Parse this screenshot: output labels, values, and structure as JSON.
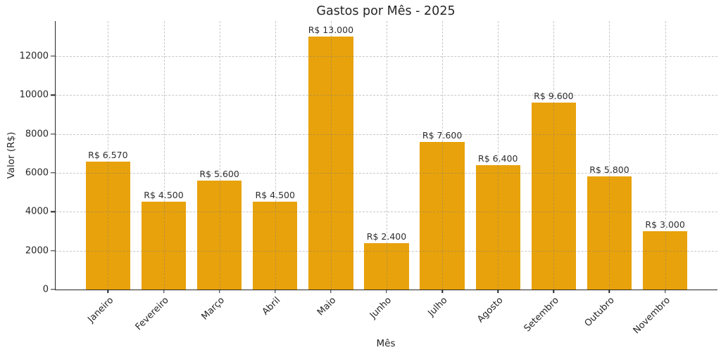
{
  "chart_data": {
    "type": "bar",
    "title": "Gastos por Mês - 2025",
    "xlabel": "Mês",
    "ylabel": "Valor (R$)",
    "categories": [
      "Janeiro",
      "Fevereiro",
      "Março",
      "Abril",
      "Maio",
      "Junho",
      "Julho",
      "Agosto",
      "Setembro",
      "Outubro",
      "Novembro"
    ],
    "values": [
      6570,
      4500,
      5600,
      4500,
      13000,
      2400,
      7600,
      6400,
      9600,
      5800,
      3000
    ],
    "bar_labels": [
      "R$ 6.570",
      "R$ 4.500",
      "R$ 5.600",
      "R$ 4.500",
      "R$ 13.000",
      "R$ 2.400",
      "R$ 7.600",
      "R$ 6.400",
      "R$ 9.600",
      "R$ 5.800",
      "R$ 3.000"
    ],
    "yticks": [
      0,
      2000,
      4000,
      6000,
      8000,
      10000,
      12000
    ],
    "ytick_labels": [
      "0",
      "2000",
      "4000",
      "6000",
      "8000",
      "10000",
      "12000"
    ],
    "ylim": [
      0,
      13800
    ],
    "xlim": [
      -0.94,
      10.94
    ],
    "bar_width_units": 0.8,
    "bar_color": "#E8A20B",
    "grid": "dashed, both axes, drawn over bars with transparency",
    "legend": "none",
    "spines": [
      "left",
      "bottom"
    ],
    "text_color": "#262626"
  }
}
